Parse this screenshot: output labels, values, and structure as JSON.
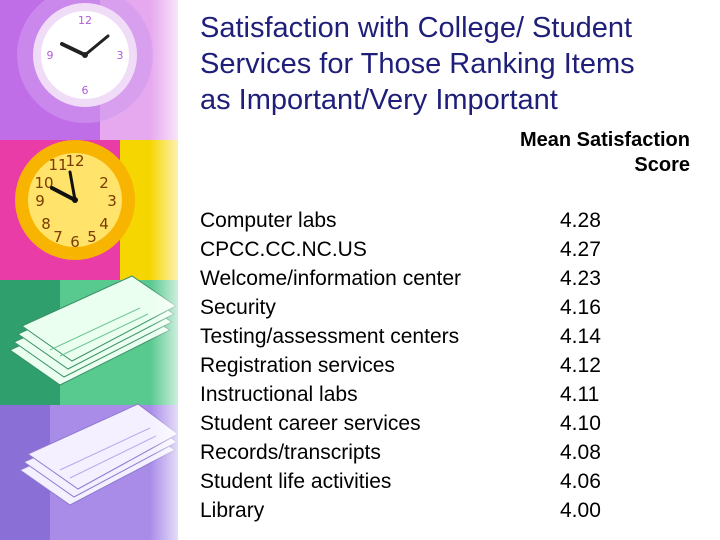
{
  "slide": {
    "title": "Satisfaction with College/ Student\nServices for Those Ranking Items\nas Important/Very Important",
    "column_header": "Mean Satisfaction\nScore",
    "items": [
      {
        "label": "Computer labs",
        "score": "4.28"
      },
      {
        "label": "CPCC.CC.NC.US",
        "score": "4.27"
      },
      {
        "label": "Welcome/information center",
        "score": "4.23"
      },
      {
        "label": "Security",
        "score": "4.16"
      },
      {
        "label": "Testing/assessment centers",
        "score": "4.14"
      },
      {
        "label": "Registration services",
        "score": "4.12"
      },
      {
        "label": "Instructional labs",
        "score": "4.11"
      },
      {
        "label": "Student career services",
        "score": "4.10"
      },
      {
        "label": "Records/transcripts",
        "score": "4.08"
      },
      {
        "label": "Student life activities",
        "score": "4.06"
      },
      {
        "label": "Library",
        "score": "4.00"
      }
    ]
  },
  "decor": {
    "images": [
      "wall-clock-purple",
      "wall-clock-orange",
      "stacked-papers-green",
      "stacked-papers-purple"
    ],
    "colors": {
      "purple": "#b565e6",
      "magenta": "#e83aa8",
      "orange": "#f6a400",
      "yellow": "#f6e000",
      "green": "#52c88a",
      "lavender": "#a98ce8",
      "title": "#1f1f7a"
    }
  }
}
